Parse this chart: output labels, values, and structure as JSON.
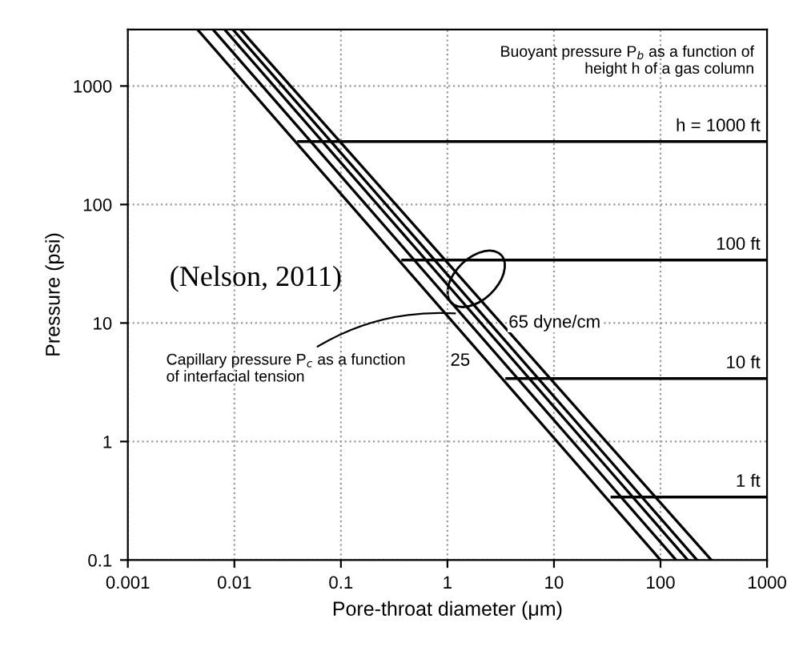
{
  "chart_data": {
    "type": "line",
    "xlabel": "Pore-throat diameter (μm)",
    "ylabel": "Pressure (psi)",
    "log": "xy",
    "xlim": [
      0.001,
      1000
    ],
    "ylim": [
      0.1,
      3000
    ],
    "xticks": [
      {
        "value": 0.001,
        "label": "0.001"
      },
      {
        "value": 0.01,
        "label": "0.01"
      },
      {
        "value": 0.1,
        "label": "0.1"
      },
      1,
      10,
      100,
      1000
    ],
    "yticks": [
      {
        "value": 0.1,
        "label": "0.1"
      },
      1,
      10,
      100,
      1000
    ],
    "grid": true,
    "line_style": "solid",
    "marker": "none",
    "series": [
      {
        "color": "#000000",
        "x": [
          0.0045,
          100
        ],
        "values": [
          3000,
          0.1
        ]
      },
      {
        "color": "#000000",
        "x": [
          0.0063,
          140
        ],
        "values": [
          3000,
          0.1
        ]
      },
      {
        "color": "#000000",
        "x": [
          0.0081,
          180
        ],
        "values": [
          3000,
          0.1
        ]
      },
      {
        "color": "#000000",
        "x": [
          0.0097,
          220
        ],
        "values": [
          3000,
          0.1
        ]
      },
      {
        "color": "#000000",
        "x": [
          0.0114,
          300
        ],
        "values": [
          3000,
          0.1
        ]
      },
      {
        "color": "#000000",
        "x": [
          0.04,
          1000
        ],
        "values": [
          340,
          340
        ]
      },
      {
        "color": "#000000",
        "x": [
          0.38,
          1000
        ],
        "values": [
          34,
          34
        ]
      },
      {
        "color": "#000000",
        "x": [
          3.6,
          1000
        ],
        "values": [
          3.4,
          3.4
        ]
      },
      {
        "color": "#000000",
        "x": [
          35,
          1000
        ],
        "values": [
          0.34,
          0.34
        ]
      }
    ],
    "annotations": [
      {
        "text": "h = 1000 ft",
        "x": 1000,
        "y": 340
      },
      {
        "text": "100 ft",
        "x": 1000,
        "y": 34
      },
      {
        "text": "10 ft",
        "x": 1000,
        "y": 3.4
      },
      {
        "text": "1 ft",
        "x": 1000,
        "y": 0.34
      },
      {
        "text": "65 dyne/cm",
        "x": 3,
        "y": 10
      },
      "25",
      {
        "text": "Capillary pressure P$_{c}$ as a function of interfacial tension",
        "x": 1.3,
        "y": 12
      },
      "Buoyant pressure P$_{b}$ as a function of height h of a gas column",
      "(Nelson, 2011)"
    ]
  }
}
